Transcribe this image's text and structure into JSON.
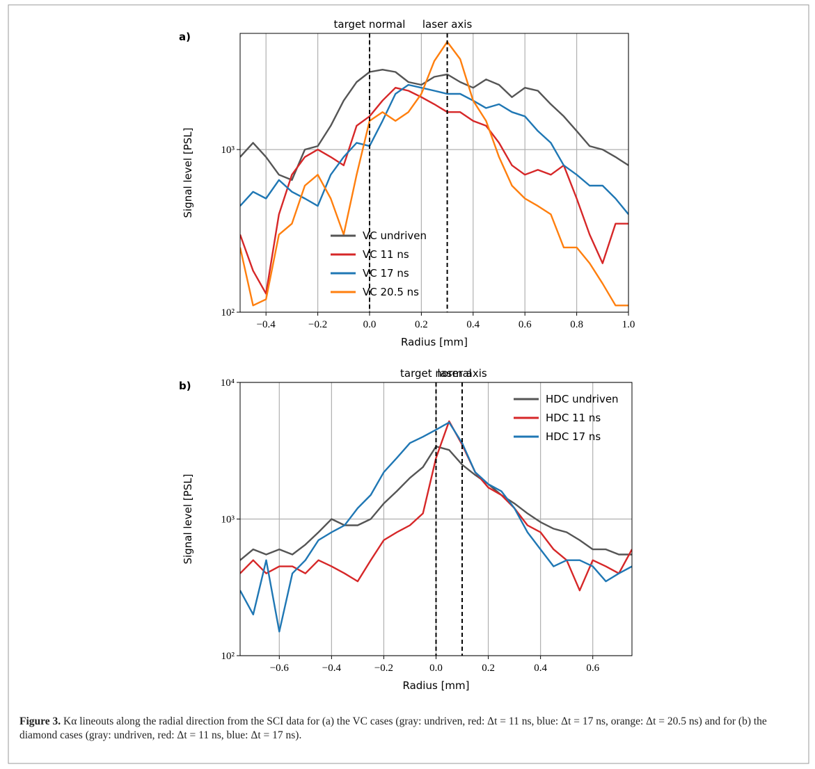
{
  "chart_data": [
    {
      "type": "line",
      "panel_label": "a)",
      "xlabel": "Radius [mm]",
      "ylabel": "Signal level [PSL]",
      "log_y": true,
      "grid": true,
      "legend": "lower center",
      "xlim": [
        -0.5,
        1.0
      ],
      "ylim": [
        100,
        5180
      ],
      "xticks": [
        {
          "value": -0.4,
          "label": "−0.4"
        },
        {
          "value": -0.2,
          "label": "−0.2"
        },
        {
          "value": 0,
          "label": "0.0"
        },
        0.2,
        0.4,
        0.6,
        0.8,
        {
          "value": 1,
          "label": "1.0"
        }
      ],
      "yticks": [
        {
          "value": 100,
          "label": "10²"
        },
        {
          "value": 1000,
          "label": "10³"
        }
      ],
      "vlines": [
        {
          "x": 0,
          "label": "target normal"
        },
        {
          "x": 0.3,
          "label": "laser axis"
        }
      ],
      "x": [
        -0.5,
        -0.45,
        -0.4,
        -0.35,
        -0.3,
        -0.25,
        -0.2,
        -0.15,
        -0.1,
        -0.05,
        0,
        0.05,
        0.1,
        0.15,
        0.2,
        0.25,
        0.3,
        0.35,
        0.4,
        0.45,
        0.5,
        0.55,
        0.6,
        0.65,
        0.7,
        0.75,
        0.8,
        0.85,
        0.9,
        0.95,
        1.0
      ],
      "series": [
        {
          "name": "VC undriven",
          "color": "#555555",
          "values": [
            900,
            1100,
            900,
            700,
            650,
            1000,
            1050,
            1400,
            2000,
            2600,
            3000,
            3100,
            3000,
            2600,
            2500,
            2800,
            2900,
            2600,
            2400,
            2700,
            2500,
            2100,
            2400,
            2300,
            1900,
            1600,
            1300,
            1050,
            1000,
            900,
            800
          ]
        },
        {
          "name": "VC 11 ns",
          "color": "#d62728",
          "values": [
            300,
            180,
            130,
            400,
            700,
            900,
            1000,
            900,
            800,
            1400,
            1600,
            2000,
            2400,
            2300,
            2100,
            1900,
            1700,
            1700,
            1500,
            1400,
            1100,
            800,
            700,
            750,
            700,
            800,
            500,
            300,
            200,
            350,
            350
          ]
        },
        {
          "name": "VC 17 ns",
          "color": "#1f77b4",
          "values": [
            450,
            550,
            500,
            650,
            550,
            500,
            450,
            700,
            900,
            1100,
            1050,
            1500,
            2200,
            2500,
            2400,
            2300,
            2200,
            2200,
            2000,
            1800,
            1900,
            1700,
            1600,
            1300,
            1100,
            800,
            700,
            600,
            600,
            500,
            400
          ]
        },
        {
          "name": "VC 20.5 ns",
          "color": "#ff7f0e",
          "values": [
            250,
            110,
            120,
            300,
            350,
            600,
            700,
            500,
            300,
            700,
            1500,
            1700,
            1500,
            1700,
            2200,
            3500,
            4600,
            3600,
            2000,
            1500,
            900,
            600,
            500,
            450,
            400,
            250,
            250,
            200,
            150,
            110,
            110
          ]
        }
      ]
    },
    {
      "type": "line",
      "panel_label": "b)",
      "xlabel": "Radius [mm]",
      "ylabel": "Signal level [PSL]",
      "log_y": true,
      "grid": true,
      "legend": "upper right",
      "xlim": [
        -0.75,
        0.75
      ],
      "ylim": [
        100,
        10000
      ],
      "xticks": [
        {
          "value": -0.6,
          "label": "−0.6"
        },
        {
          "value": -0.4,
          "label": "−0.4"
        },
        {
          "value": -0.2,
          "label": "−0.2"
        },
        {
          "value": 0,
          "label": "0.0"
        },
        0.2,
        0.4,
        0.6
      ],
      "yticks": [
        {
          "value": 100,
          "label": "10²"
        },
        {
          "value": 1000,
          "label": "10³"
        },
        {
          "value": 10000,
          "label": "10⁴"
        }
      ],
      "vlines": [
        {
          "x": 0,
          "label": "target normal"
        },
        {
          "x": 0.1,
          "label": "laser axis"
        }
      ],
      "x": [
        -0.75,
        -0.7,
        -0.65,
        -0.6,
        -0.55,
        -0.5,
        -0.45,
        -0.4,
        -0.35,
        -0.3,
        -0.25,
        -0.2,
        -0.15,
        -0.1,
        -0.05,
        0,
        0.05,
        0.1,
        0.15,
        0.2,
        0.25,
        0.3,
        0.35,
        0.4,
        0.45,
        0.5,
        0.55,
        0.6,
        0.65,
        0.7,
        0.75
      ],
      "series": [
        {
          "name": "HDC undriven",
          "color": "#555555",
          "values": [
            500,
            600,
            550,
            600,
            550,
            650,
            800,
            1000,
            900,
            900,
            1000,
            1300,
            1600,
            2000,
            2400,
            3400,
            3200,
            2500,
            2100,
            1800,
            1500,
            1300,
            1100,
            950,
            850,
            800,
            700,
            600,
            600,
            550,
            550
          ]
        },
        {
          "name": "HDC 11 ns",
          "color": "#d62728",
          "values": [
            400,
            500,
            400,
            450,
            450,
            400,
            500,
            450,
            400,
            350,
            500,
            700,
            800,
            900,
            1100,
            2800,
            5200,
            3500,
            2200,
            1700,
            1500,
            1200,
            900,
            800,
            600,
            500,
            300,
            500,
            450,
            400,
            600
          ]
        },
        {
          "name": "HDC 17 ns",
          "color": "#1f77b4",
          "values": [
            300,
            200,
            500,
            150,
            400,
            500,
            700,
            800,
            900,
            1200,
            1500,
            2200,
            2800,
            3600,
            4000,
            4500,
            5100,
            3600,
            2200,
            1800,
            1600,
            1200,
            800,
            600,
            450,
            500,
            500,
            450,
            350,
            400,
            450
          ]
        }
      ]
    }
  ],
  "caption": {
    "label": "Figure 3.",
    "text": "Kα lineouts along the radial direction from the SCI data for (a) the VC cases (gray: undriven, red: Δt = 11 ns, blue: Δt = 17 ns, orange: Δt = 20.5 ns) and for (b) the diamond cases (gray: undriven, red: Δt = 11 ns, blue: Δt = 17 ns)."
  }
}
